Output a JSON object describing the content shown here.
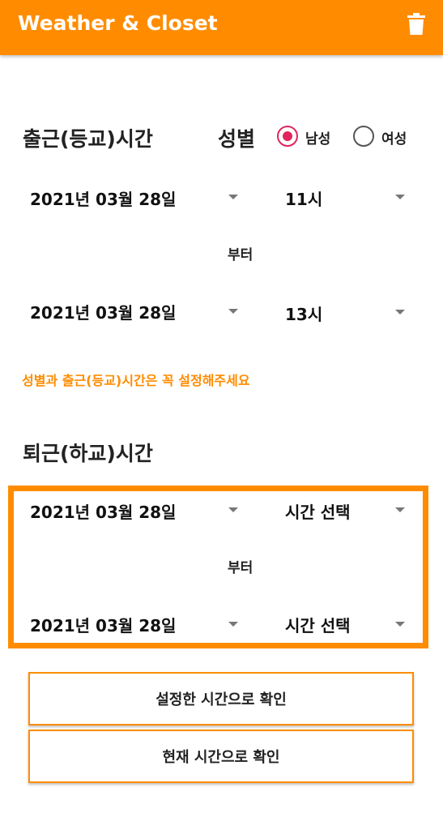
{
  "app": {
    "title": "Weather & Closet"
  },
  "commute": {
    "label": "출근(등교)시간",
    "start_date": "2021년 03월 28일",
    "start_hour": "11시",
    "from_label": "부터",
    "end_date": "2021년 03월 28일",
    "end_hour": "13시"
  },
  "gender": {
    "label": "성별",
    "options": [
      {
        "label": "남성",
        "selected": true
      },
      {
        "label": "여성",
        "selected": false
      }
    ]
  },
  "warning": "성별과 출근(등교)시간은 꼭 설정해주세요",
  "return_trip": {
    "label": "퇴근(하교)시간",
    "start_date": "2021년 03월 28일",
    "start_hour": "시간 선택",
    "from_label": "부터",
    "end_date": "2021년 03월 28일",
    "end_hour": "시간 선택"
  },
  "buttons": {
    "check_set_time": "설정한 시간으로 확인",
    "check_current_time": "현재 시간으로 확인"
  },
  "icons": {
    "appbar_action": "trash-icon"
  },
  "colors": {
    "accent": "#ff8c00",
    "radio_selected": "#e0245e",
    "background": "#ffffff"
  }
}
